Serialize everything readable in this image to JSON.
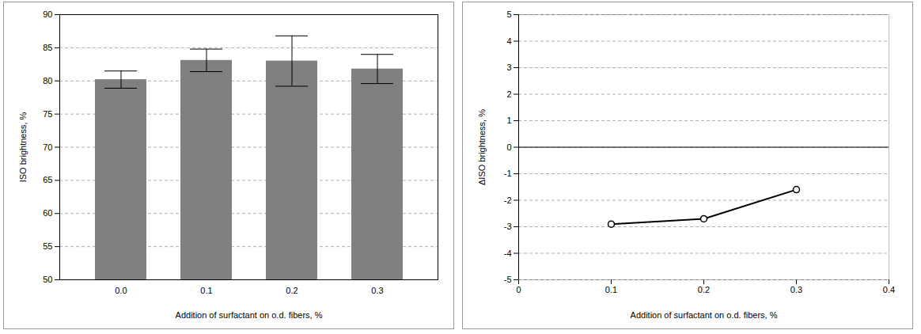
{
  "chart_data": [
    {
      "type": "bar",
      "categories": [
        "0.0",
        "0.1",
        "0.2",
        "0.3"
      ],
      "values": [
        80.2,
        83.1,
        83.0,
        81.8
      ],
      "errors": [
        1.3,
        1.7,
        3.8,
        2.2
      ],
      "color": "#808080",
      "x_label": "Addition of surfactant on o.d. fibers, %",
      "y_label": "ISO brightness, %",
      "ylim": [
        50,
        90
      ],
      "yticks": [
        50,
        55,
        60,
        65,
        70,
        75,
        80,
        85,
        90
      ],
      "grid": true
    },
    {
      "type": "line",
      "x": [
        0.1,
        0.2,
        0.3
      ],
      "values": [
        -2.9,
        -2.7,
        -1.6
      ],
      "color": "#000000",
      "marker": "circle",
      "x_label": "Addition of surfactant on o.d. fibers, %",
      "y_label": "ΔISO brightness, %",
      "xlim": [
        0,
        0.4
      ],
      "xticks": [
        0,
        0.1,
        0.2,
        0.3,
        0.4
      ],
      "ylim": [
        -5,
        5
      ],
      "yticks": [
        -5,
        -4,
        -3,
        -2,
        -1,
        0,
        1,
        2,
        3,
        4,
        5
      ],
      "grid": true
    }
  ]
}
